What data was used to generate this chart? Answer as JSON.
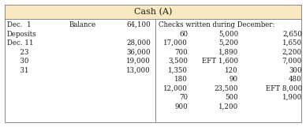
{
  "title": "Cash (A)",
  "title_bg": "#FAE8C0",
  "border_color": "#888888",
  "left_rows": [
    [
      "Dec.  1",
      "Balance",
      "64,100"
    ],
    [
      "Deposits",
      "",
      ""
    ],
    [
      "Dec. 11",
      "",
      "28,000"
    ],
    [
      "      23",
      "",
      "36,000"
    ],
    [
      "      30",
      "",
      "19,000"
    ],
    [
      "      31",
      "",
      "13,000"
    ]
  ],
  "right_header": "Checks written during December:",
  "right_cols": [
    [
      "60",
      "5,000",
      "2,650"
    ],
    [
      "17,000",
      "5,200",
      "1,650"
    ],
    [
      "700",
      "1,890",
      "2,200"
    ],
    [
      "3,500",
      "EFT 1,600",
      "7,000"
    ],
    [
      "1,350",
      "120",
      "300"
    ],
    [
      "180",
      "90",
      "480"
    ],
    [
      "12,000",
      "23,500",
      "EFT 8,000"
    ],
    [
      "70",
      "500",
      "1,900"
    ],
    [
      "900",
      "1,200",
      ""
    ]
  ],
  "text_color": "#1A1A1A",
  "bg_color": "#FFFFFF",
  "font_size": 6.2,
  "title_font_size": 8.0,
  "fig_width": 3.88,
  "fig_height": 1.61,
  "dpi": 100
}
